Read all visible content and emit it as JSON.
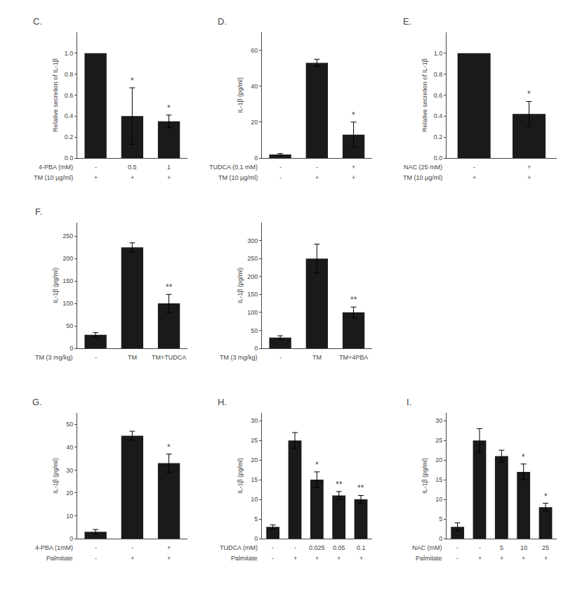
{
  "chart_data": [
    {
      "type": "bar",
      "title": "C.",
      "ylabel": "Relative secretion of IL-1β",
      "color": "#1a1a1a",
      "grid": false,
      "categories": [
        null,
        null,
        null
      ],
      "values": [
        1.0,
        0.4,
        0.35
      ],
      "errors": [
        0.0,
        0.27,
        0.06
      ],
      "significance": [
        null,
        "*",
        "*"
      ],
      "x_label_rows": [
        {
          "label": "4-PBA (mM)",
          "texts": [
            "-",
            "0.5",
            "1"
          ]
        },
        {
          "label": "TM (10 μg/ml)",
          "texts": [
            "+",
            "+",
            "+"
          ]
        }
      ],
      "ylim": [
        0,
        1.2
      ],
      "yticks": [
        {
          "value": 0,
          "label": "0.0"
        },
        0.2,
        0.4,
        0.6,
        0.8,
        {
          "value": 1,
          "label": "1.0"
        }
      ]
    },
    {
      "type": "bar",
      "title": "D.",
      "ylabel": "IL-1β (pg/ml)",
      "color": "#1a1a1a",
      "grid": false,
      "categories": [
        null,
        null,
        null
      ],
      "values": [
        2.0,
        53.0,
        13.0
      ],
      "errors": [
        0.5,
        2.0,
        7.0
      ],
      "significance": [
        null,
        null,
        "*"
      ],
      "x_label_rows": [
        {
          "label": "TUDCA (0.1 mM)",
          "texts": [
            "-",
            "-",
            "+"
          ]
        },
        {
          "label": "TM (10 μg/ml)",
          "texts": [
            "-",
            "+",
            "+"
          ]
        }
      ],
      "ylim": [
        0,
        70
      ],
      "yticks": [
        0,
        20,
        40,
        60
      ]
    },
    {
      "type": "bar",
      "title": "E.",
      "ylabel": "Relative secretion of IL-1β",
      "color": "#1a1a1a",
      "grid": false,
      "categories": [
        null,
        null
      ],
      "values": [
        1.0,
        0.42
      ],
      "errors": [
        0.0,
        0.12
      ],
      "significance": [
        null,
        "*"
      ],
      "x_label_rows": [
        {
          "label": "NAC (25 mM)",
          "texts": [
            "-",
            "+"
          ]
        },
        {
          "label": "TM (10 μg/ml)",
          "texts": [
            "+",
            "+"
          ]
        }
      ],
      "ylim": [
        0,
        1.2
      ],
      "yticks": [
        {
          "value": 0,
          "label": "0.0"
        },
        0.2,
        0.4,
        0.6,
        0.8,
        {
          "value": 1,
          "label": "1.0"
        }
      ]
    },
    {
      "type": "bar",
      "title": "F.",
      "ylabel": "IL-1β (pg/ml)",
      "color": "#1a1a1a",
      "grid": false,
      "categories": [
        null,
        null,
        null
      ],
      "values": [
        30,
        225,
        100
      ],
      "errors": [
        5,
        10,
        20
      ],
      "significance": [
        null,
        null,
        "**"
      ],
      "x_label_rows": [
        {
          "label": "TM (3 mg/kg)",
          "texts": [
            "-",
            "TM",
            "TM+TUDCA"
          ]
        }
      ],
      "ylim": [
        0,
        280
      ],
      "yticks": [
        0,
        50,
        100,
        150,
        200,
        250
      ]
    },
    {
      "type": "bar",
      "ylabel": "IL-1β (pg/ml)",
      "color": "#1a1a1a",
      "grid": false,
      "categories": [
        null,
        null,
        null
      ],
      "values": [
        30,
        250,
        100
      ],
      "errors": [
        5,
        40,
        15
      ],
      "significance": [
        null,
        null,
        "**"
      ],
      "x_label_rows": [
        {
          "label": "TM (3 mg/kg)",
          "texts": [
            "-",
            "TM",
            "TM+4PBA"
          ]
        }
      ],
      "ylim": [
        0,
        350
      ],
      "yticks": [
        0,
        50,
        100,
        150,
        200,
        250,
        300
      ]
    },
    {
      "type": "bar",
      "title": "G.",
      "ylabel": "IL-1β (pg/ml)",
      "color": "#1a1a1a",
      "grid": false,
      "categories": [
        null,
        null,
        null
      ],
      "values": [
        3,
        45,
        33
      ],
      "errors": [
        1,
        2,
        4
      ],
      "significance": [
        null,
        null,
        "*"
      ],
      "x_label_rows": [
        {
          "label": "4-PBA (1mM)",
          "texts": [
            "-",
            "-",
            "+"
          ]
        },
        {
          "label": "Palmitate",
          "texts": [
            "-",
            "+",
            "+"
          ]
        }
      ],
      "ylim": [
        0,
        55
      ],
      "yticks": [
        0,
        10,
        20,
        30,
        40,
        50
      ]
    },
    {
      "type": "bar",
      "title": "H.",
      "ylabel": "IL-1β (pg/ml)",
      "color": "#1a1a1a",
      "grid": false,
      "categories": [
        null,
        null,
        null,
        null,
        null
      ],
      "values": [
        3,
        25,
        15,
        11,
        10
      ],
      "errors": [
        0.5,
        2,
        2,
        1,
        1
      ],
      "significance": [
        null,
        null,
        "*",
        "**",
        "**"
      ],
      "x_label_rows": [
        {
          "label": "TUDCA (mM)",
          "texts": [
            "-",
            "-",
            "0.025",
            "0.05",
            "0.1"
          ]
        },
        {
          "label": "Palmitate",
          "texts": [
            "-",
            "+",
            "+",
            "+",
            "+"
          ]
        }
      ],
      "ylim": [
        0,
        32
      ],
      "yticks": [
        0,
        5,
        10,
        15,
        20,
        25,
        30
      ]
    },
    {
      "type": "bar",
      "title": "I.",
      "ylabel": "IL-1β (pg/ml)",
      "color": "#1a1a1a",
      "grid": false,
      "categories": [
        null,
        null,
        null,
        null,
        null
      ],
      "values": [
        3,
        25,
        21,
        17,
        8
      ],
      "errors": [
        1,
        3,
        1.5,
        2,
        1
      ],
      "significance": [
        null,
        null,
        null,
        "*",
        "*"
      ],
      "x_label_rows": [
        {
          "label": "NAC (mM)",
          "texts": [
            "-",
            "-",
            "5",
            "10",
            "25"
          ]
        },
        {
          "label": "Palmitate",
          "texts": [
            "-",
            "+",
            "+",
            "+",
            "+"
          ]
        }
      ],
      "ylim": [
        0,
        32
      ],
      "yticks": [
        0,
        5,
        10,
        15,
        20,
        25,
        30
      ]
    }
  ]
}
